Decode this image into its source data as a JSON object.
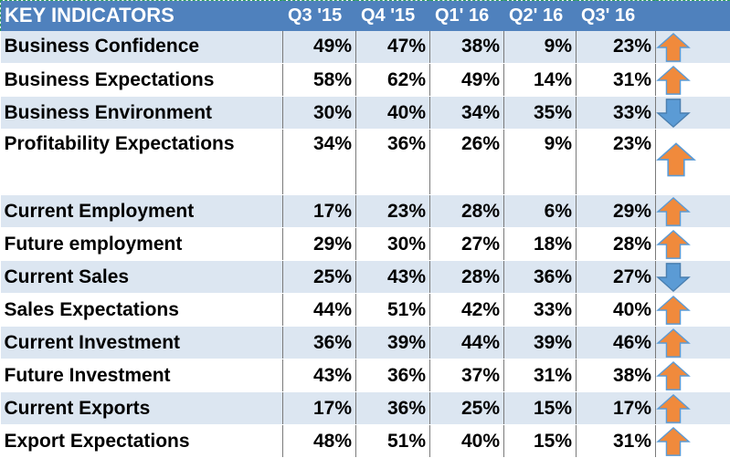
{
  "header": {
    "title": "KEY INDICATORS",
    "columns": [
      "Q3 '15",
      "Q4 '15",
      "Q1' 16",
      "Q2' 16",
      "Q3' 16"
    ]
  },
  "rows": [
    {
      "label": "Business Confidence",
      "values": [
        "49%",
        "47%",
        "38%",
        "9%",
        "23%"
      ],
      "trend": "up"
    },
    {
      "label": "Business Expectations",
      "values": [
        "58%",
        "62%",
        "49%",
        "14%",
        "31%"
      ],
      "trend": "up"
    },
    {
      "label": "Business Environment",
      "values": [
        "30%",
        "40%",
        "34%",
        "35%",
        "33%"
      ],
      "trend": "down"
    },
    {
      "label": "Profitability Expectations",
      "values": [
        "34%",
        "36%",
        "26%",
        "9%",
        "23%"
      ],
      "trend": "up"
    },
    {
      "label": "Current Employment",
      "values": [
        "17%",
        "23%",
        "28%",
        "6%",
        "29%"
      ],
      "trend": "up"
    },
    {
      "label": "Future employment",
      "values": [
        "29%",
        "30%",
        "27%",
        "18%",
        "28%"
      ],
      "trend": "up"
    },
    {
      "label": "Current Sales",
      "values": [
        "25%",
        "43%",
        "28%",
        "36%",
        "27%"
      ],
      "trend": "down"
    },
    {
      "label": "Sales Expectations",
      "values": [
        "44%",
        "51%",
        "42%",
        "33%",
        "40%"
      ],
      "trend": "up"
    },
    {
      "label": "Current Investment",
      "values": [
        "36%",
        "39%",
        "44%",
        "39%",
        "46%"
      ],
      "trend": "up"
    },
    {
      "label": "Future Investment",
      "values": [
        "43%",
        "36%",
        "37%",
        "31%",
        "38%"
      ],
      "trend": "up"
    },
    {
      "label": "Current Exports",
      "values": [
        "17%",
        "36%",
        "25%",
        "15%",
        "17%"
      ],
      "trend": "up"
    },
    {
      "label": "Export Expectations",
      "values": [
        "48%",
        "51%",
        "40%",
        "15%",
        "31%"
      ],
      "trend": "up"
    }
  ],
  "colors": {
    "header_bg": "#4f81bd",
    "shaded_row": "#dce6f1",
    "up_arrow": "#f08a3c",
    "down_arrow": "#5b9bd5"
  },
  "icons": {
    "up": "arrow-up-icon",
    "down": "arrow-down-icon"
  }
}
